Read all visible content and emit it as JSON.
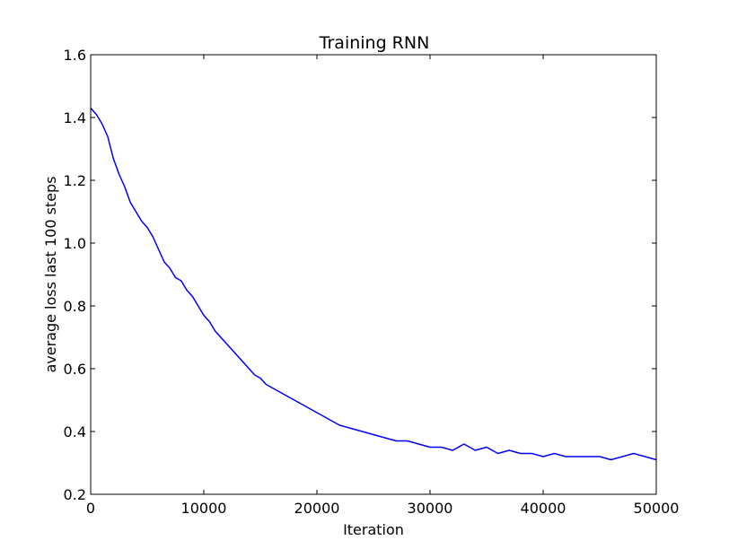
{
  "chart_data": {
    "type": "line",
    "title": "Training RNN",
    "xlabel": "Iteration",
    "ylabel": "average loss last 100 steps",
    "xlim": [
      0,
      50000
    ],
    "ylim": [
      0.2,
      1.6
    ],
    "x_ticks": [
      0,
      10000,
      20000,
      30000,
      40000,
      50000
    ],
    "x_tick_labels": [
      "0",
      "10000",
      "20000",
      "30000",
      "40000",
      "50000"
    ],
    "y_ticks": [
      0.2,
      0.4,
      0.6,
      0.8,
      1.0,
      1.2,
      1.4,
      1.6
    ],
    "y_tick_labels": [
      "0.2",
      "0.4",
      "0.6",
      "0.8",
      "1.0",
      "1.2",
      "1.4",
      "1.6"
    ],
    "grid": false,
    "line_color": "#0000ff",
    "series": [
      {
        "x": [
          0,
          500,
          1000,
          1500,
          2000,
          2500,
          3000,
          3500,
          4000,
          4500,
          5000,
          5500,
          6000,
          6500,
          7000,
          7500,
          8000,
          8500,
          9000,
          9500,
          10000,
          10500,
          11000,
          11500,
          12000,
          12500,
          13000,
          13500,
          14000,
          14500,
          15000,
          15500,
          16000,
          16500,
          17000,
          17500,
          18000,
          18500,
          19000,
          19500,
          20000,
          21000,
          22000,
          23000,
          24000,
          25000,
          26000,
          27000,
          28000,
          29000,
          30000,
          31000,
          32000,
          33000,
          34000,
          35000,
          36000,
          37000,
          38000,
          39000,
          40000,
          41000,
          42000,
          43000,
          44000,
          45000,
          46000,
          47000,
          48000,
          49000,
          50000
        ],
        "y": [
          1.43,
          1.41,
          1.38,
          1.34,
          1.27,
          1.22,
          1.18,
          1.13,
          1.1,
          1.07,
          1.05,
          1.02,
          0.98,
          0.94,
          0.92,
          0.89,
          0.88,
          0.85,
          0.83,
          0.8,
          0.77,
          0.75,
          0.72,
          0.7,
          0.68,
          0.66,
          0.64,
          0.62,
          0.6,
          0.58,
          0.57,
          0.55,
          0.54,
          0.53,
          0.52,
          0.51,
          0.5,
          0.49,
          0.48,
          0.47,
          0.46,
          0.44,
          0.42,
          0.41,
          0.4,
          0.39,
          0.38,
          0.37,
          0.37,
          0.36,
          0.35,
          0.35,
          0.34,
          0.36,
          0.34,
          0.35,
          0.33,
          0.34,
          0.33,
          0.33,
          0.32,
          0.33,
          0.32,
          0.32,
          0.32,
          0.32,
          0.31,
          0.32,
          0.33,
          0.32,
          0.31
        ]
      }
    ]
  }
}
